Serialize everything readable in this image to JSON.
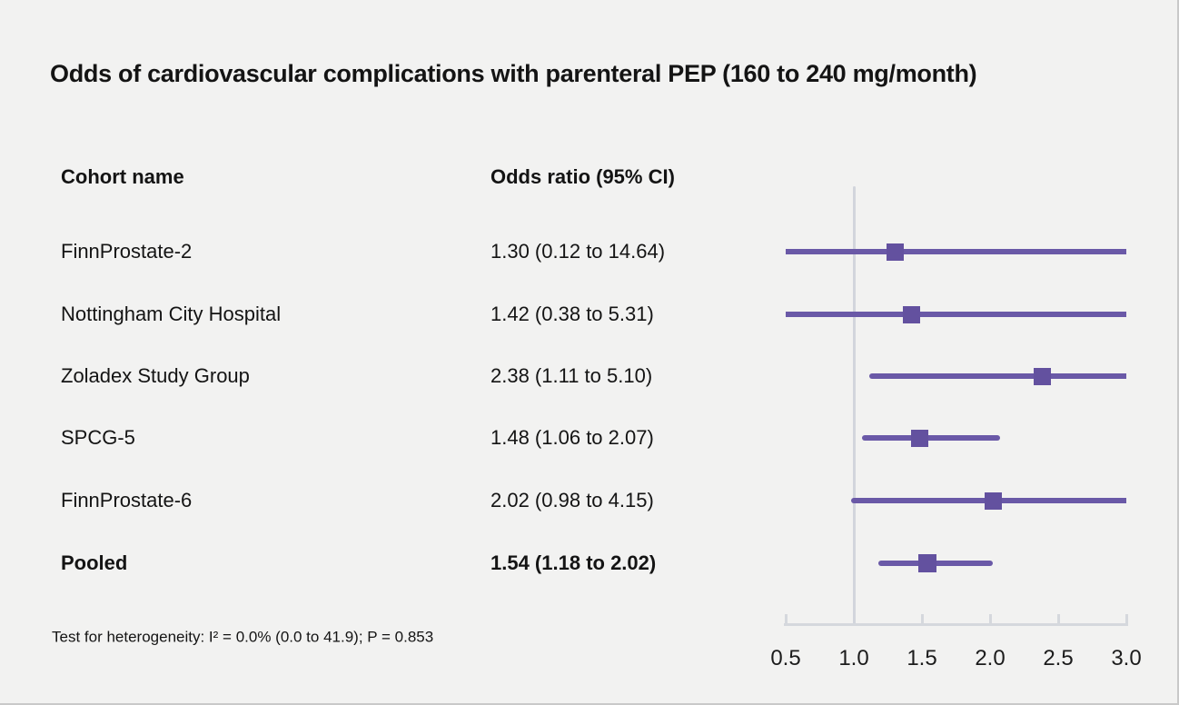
{
  "title": "Odds of cardiovascular complications with parenteral PEP (160 to 240 mg/month)",
  "table": {
    "header_cohort": "Cohort name",
    "header_or": "Odds ratio (95% CI)"
  },
  "footnote": "Test for heterogeneity: I² = 0.0% (0.0 to 41.9); P = 0.853",
  "chart_data": {
    "type": "forest",
    "title": "Odds of cardiovascular complications with parenteral PEP (160 to 240 mg/month)",
    "columns": [
      "Cohort name",
      "Odds ratio (95% CI)"
    ],
    "studies": [
      {
        "name": "FinnProstate-2",
        "or": 1.3,
        "lower": 0.12,
        "upper": 14.64,
        "label": "1.30 (0.12 to 14.64)",
        "pooled": false
      },
      {
        "name": "Nottingham City Hospital",
        "or": 1.42,
        "lower": 0.38,
        "upper": 5.31,
        "label": "1.42 (0.38 to 5.31)",
        "pooled": false
      },
      {
        "name": "Zoladex Study Group",
        "or": 2.38,
        "lower": 1.11,
        "upper": 5.1,
        "label": "2.38 (1.11 to 5.10)",
        "pooled": false
      },
      {
        "name": "SPCG-5",
        "or": 1.48,
        "lower": 1.06,
        "upper": 2.07,
        "label": "1.48 (1.06 to 2.07)",
        "pooled": false
      },
      {
        "name": "FinnProstate-6",
        "or": 2.02,
        "lower": 0.98,
        "upper": 4.15,
        "label": "2.02 (0.98 to 4.15)",
        "pooled": false
      },
      {
        "name": "Pooled",
        "or": 1.54,
        "lower": 1.18,
        "upper": 2.02,
        "label": "1.54 (1.18 to 2.02)",
        "pooled": true
      }
    ],
    "x_axis": {
      "range": [
        0.5,
        3.0
      ],
      "ticks": [
        0.5,
        1.0,
        1.5,
        2.0,
        2.5,
        3.0
      ],
      "tick_labels": [
        "0.5",
        "1.0",
        "1.5",
        "2.0",
        "2.5",
        "3.0"
      ],
      "reference_line": 1.0,
      "scale": "linear"
    },
    "legend": "none",
    "grid": "off",
    "footnote": "Test for heterogeneity: I² = 0.0% (0.0 to 41.9); P = 0.853",
    "colors": {
      "ci_line": "#6a59a7",
      "marker": "#63519f",
      "reference_line": "#d2d5dc",
      "axis": "#d5d8dd",
      "background": "#f2f2f1",
      "text": "#141414"
    }
  }
}
